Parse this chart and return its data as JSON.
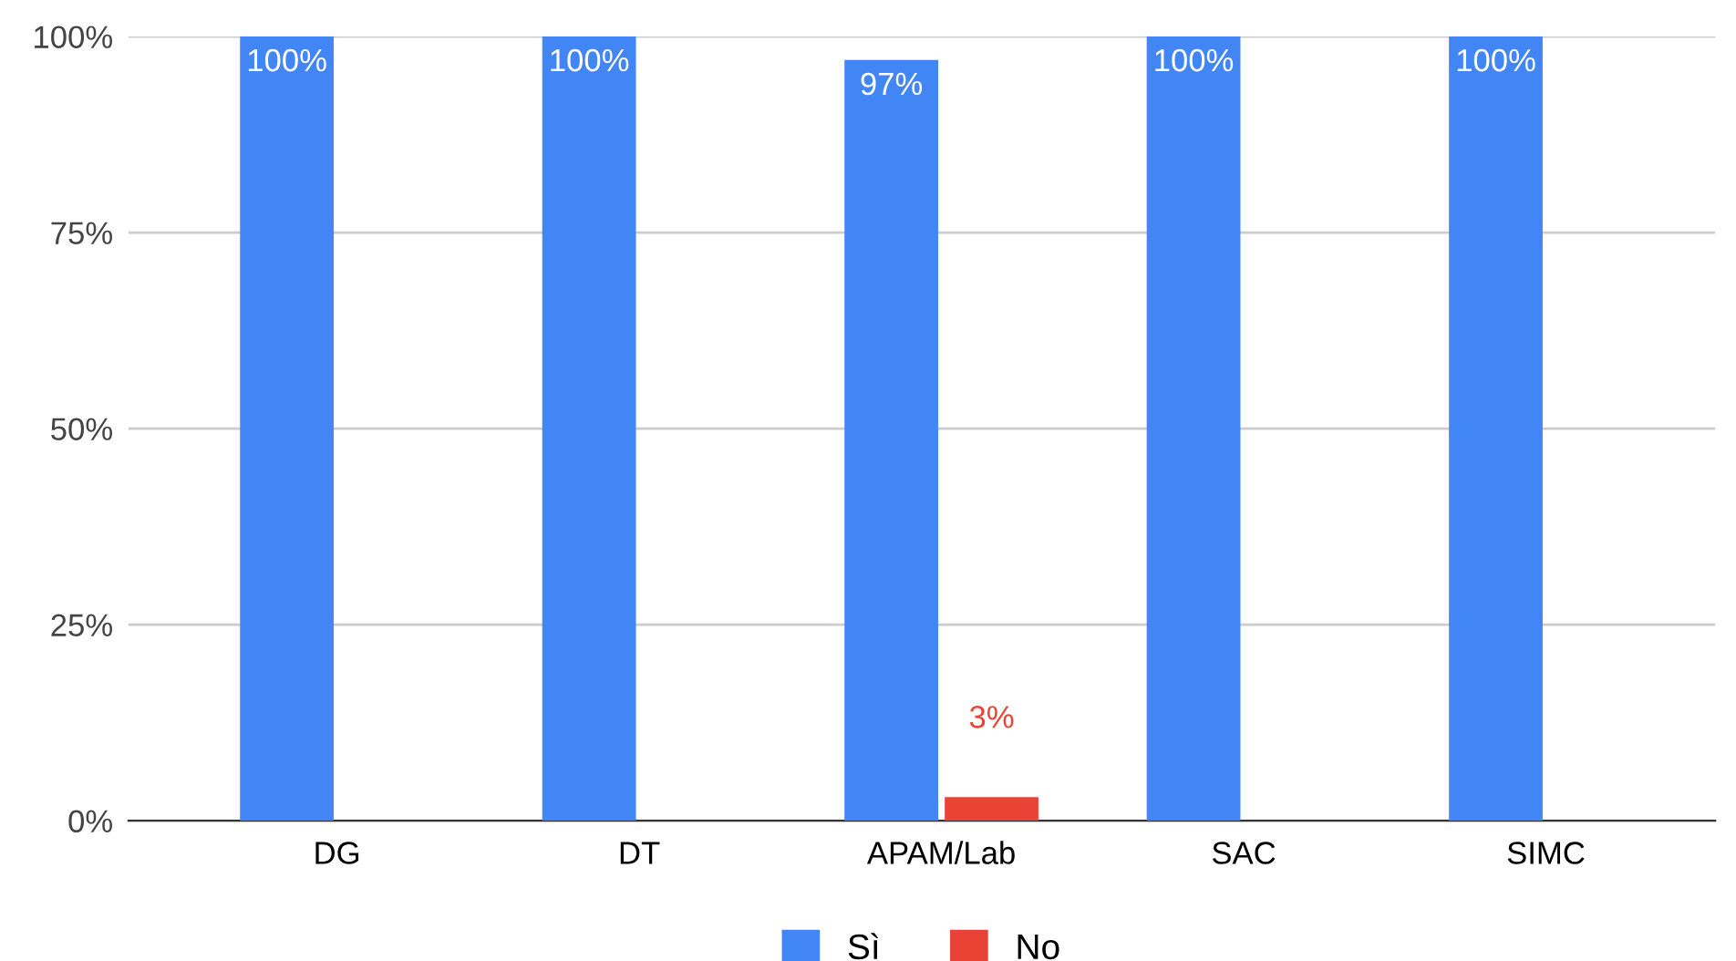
{
  "chart_data": {
    "type": "bar",
    "categories": [
      "DG",
      "DT",
      "APAM/Lab",
      "SAC",
      "SIMC"
    ],
    "series": [
      {
        "name": "Sì",
        "color": "#4285f4",
        "values": [
          100,
          100,
          97,
          100,
          100
        ],
        "value_labels": [
          "100%",
          "100%",
          "97%",
          "100%",
          "100%"
        ]
      },
      {
        "name": "No",
        "color": "#ea4335",
        "values": [
          null,
          null,
          3,
          null,
          null
        ],
        "value_labels": [
          null,
          null,
          "3%",
          null,
          null
        ]
      }
    ],
    "ylim": [
      0,
      100
    ],
    "yticks": [
      {
        "value": 0,
        "label": "0%"
      },
      {
        "value": 25,
        "label": "25%"
      },
      {
        "value": 50,
        "label": "50%"
      },
      {
        "value": 75,
        "label": "75%"
      },
      {
        "value": 100,
        "label": "100%"
      }
    ],
    "grid": "y",
    "legend": "bottom"
  }
}
